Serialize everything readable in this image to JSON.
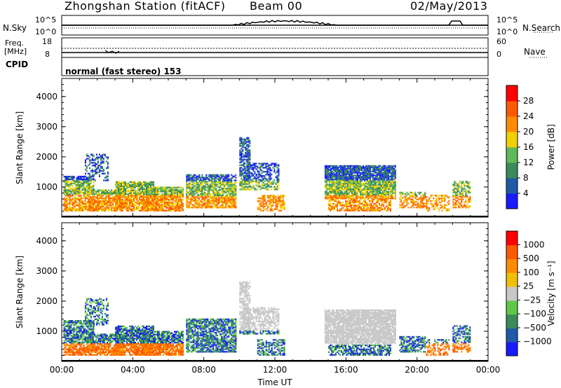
{
  "header": {
    "station": "Zhongshan Station (fitACF)",
    "beam": "Beam 00",
    "date": "02/May/2013"
  },
  "strips": {
    "nsky_label": "N.Sky",
    "nsky_ticks": [
      "10^5",
      "10^0"
    ],
    "nsearch_label": "N.Search",
    "nsearch_ticks": [
      "10^5",
      "10^0"
    ],
    "freq_label_1": "Freq.",
    "freq_label_2": "[MHz]",
    "freq_ticks": [
      "18",
      "8"
    ],
    "nave_label": "Nave",
    "nave_ticks": [
      "60",
      "0"
    ],
    "cpid_label": "CPID",
    "cpid_text": "normal (fast stereo) 153"
  },
  "chart_data": [
    {
      "type": "heatmap",
      "xlabel": "",
      "ylabel": "Slant Range [km]",
      "x_ticks": [
        "00:00",
        "04:00",
        "08:00",
        "12:00",
        "16:00",
        "20:00",
        "00:00"
      ],
      "y_ticks": [
        "1000",
        "2000",
        "3000",
        "4000"
      ],
      "colorbar_label": "Power [dB]",
      "colorbar_ticks": [
        "4",
        "8",
        "12",
        "16",
        "20",
        "24",
        "28"
      ],
      "colors": [
        "#1a1aff",
        "#1f5aa8",
        "#3c8a5a",
        "#5fb85a",
        "#f0d000",
        "#ff8c00",
        "#ff5a00",
        "#ff0000"
      ]
    },
    {
      "type": "heatmap",
      "xlabel": "Time UT",
      "ylabel": "Slant Range [km]",
      "x_ticks": [
        "00:00",
        "04:00",
        "08:00",
        "12:00",
        "16:00",
        "20:00",
        "00:00"
      ],
      "y_ticks": [
        "1000",
        "2000",
        "3000",
        "4000"
      ],
      "colorbar_label": "Velocity [m s⁻¹]",
      "colorbar_ticks": [
        "1000",
        "500",
        "100",
        "25",
        "−25",
        "−100",
        "−500",
        "−1000"
      ],
      "colors": [
        "#1a1aff",
        "#1f5aa8",
        "#3c8a5a",
        "#5fc84a",
        "#c8c8c8",
        "#f0c000",
        "#ff8c00",
        "#ff5a00",
        "#ff0000"
      ]
    }
  ]
}
